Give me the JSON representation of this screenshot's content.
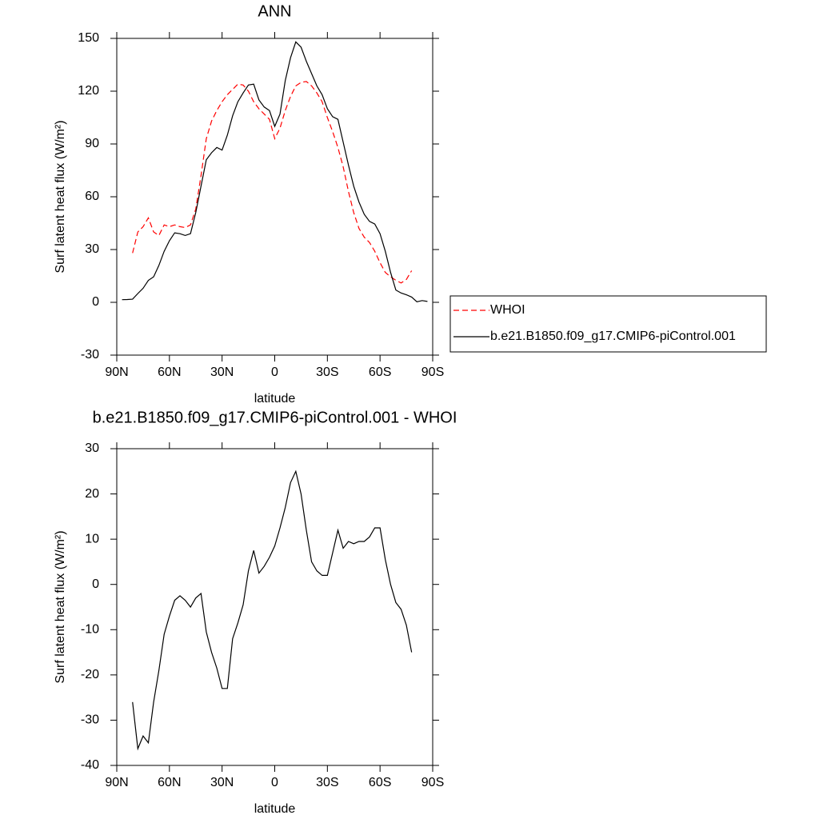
{
  "chart_data": [
    {
      "type": "line",
      "title": "ANN",
      "xlabel": "latitude",
      "ylabel": "Surf latent heat flux (W/m²)",
      "x": [
        87,
        84,
        81,
        78,
        75,
        72,
        69,
        66,
        63,
        60,
        57,
        54,
        51,
        48,
        45,
        42,
        39,
        36,
        33,
        30,
        27,
        24,
        21,
        18,
        15,
        12,
        9,
        6,
        3,
        0,
        -3,
        -6,
        -9,
        -12,
        -15,
        -18,
        -21,
        -24,
        -27,
        -30,
        -33,
        -36,
        -39,
        -42,
        -45,
        -48,
        -51,
        -54,
        -57,
        -60,
        -63,
        -66,
        -69,
        -72,
        -75,
        -78,
        -81,
        -84,
        -87
      ],
      "series": [
        {
          "name": "WHOI",
          "color": "#ff0000",
          "style": "dashed",
          "values": [
            null,
            null,
            28,
            40,
            43,
            48,
            40,
            38,
            44,
            43,
            44,
            43,
            42.5,
            44,
            53,
            72,
            93,
            103,
            109,
            114,
            118,
            121,
            124,
            123.5,
            120,
            114,
            110,
            107,
            104,
            93,
            99,
            109,
            117,
            123,
            125,
            125.5,
            123,
            119,
            114,
            105,
            97,
            88,
            77,
            63,
            51,
            42,
            37,
            34,
            29,
            22.5,
            17,
            14.5,
            12.5,
            11,
            13,
            18,
            null,
            null,
            null
          ]
        },
        {
          "name": "b.e21.B1850.f09_g17.CMIP6-piControl.001",
          "color": "#000000",
          "style": "solid",
          "values": [
            1.5,
            1.6,
            1.8,
            5,
            8,
            12.5,
            14.5,
            21,
            29,
            35,
            39.5,
            39,
            38,
            39,
            51,
            66,
            81,
            85,
            88,
            86.5,
            95,
            106,
            114,
            119,
            123.5,
            124,
            115,
            111,
            109,
            100,
            107,
            126,
            139,
            148,
            145,
            137,
            130,
            123,
            118,
            110,
            105.5,
            104,
            91,
            78,
            66,
            57,
            50,
            46,
            44.5,
            39,
            29,
            17,
            7,
            5.3,
            4.3,
            3,
            0.3,
            1,
            0.5
          ]
        }
      ],
      "xlim": [
        90,
        -90
      ],
      "xticks": [
        {
          "value": 90,
          "label": "90N"
        },
        {
          "value": 60,
          "label": "60N"
        },
        {
          "value": 30,
          "label": "30N"
        },
        0,
        {
          "value": -30,
          "label": "30S"
        },
        {
          "value": -60,
          "label": "60S"
        },
        {
          "value": -90,
          "label": "90S"
        }
      ],
      "ylim": [
        -30,
        150
      ],
      "yticks": [
        -30,
        0,
        30,
        60,
        90,
        120,
        150
      ],
      "legend": "right"
    },
    {
      "type": "line",
      "title": "b.e21.B1850.f09_g17.CMIP6-piControl.001 - WHOI",
      "xlabel": "latitude",
      "ylabel": "Surf latent heat flux (W/m²)",
      "x": [
        81,
        78,
        75,
        72,
        69,
        66,
        63,
        60,
        57,
        54,
        51,
        48,
        45,
        42,
        39,
        36,
        33,
        30,
        27,
        24,
        21,
        18,
        15,
        12,
        9,
        6,
        3,
        0,
        -3,
        -6,
        -9,
        -12,
        -15,
        -18,
        -21,
        -24,
        -27,
        -30,
        -33,
        -36,
        -39,
        -42,
        -45,
        -48,
        -51,
        -54,
        -57,
        -60,
        -63,
        -66,
        -69,
        -72,
        -75,
        -78
      ],
      "values": [
        -26,
        -36.3,
        -33.5,
        -35,
        -26,
        -19,
        -11,
        -7,
        -3.5,
        -2.5,
        -3.5,
        -5,
        -3,
        -2,
        -10.5,
        -15,
        -18.5,
        -23,
        -23,
        -12,
        -8.5,
        -4.5,
        3,
        7.5,
        2.5,
        4,
        6,
        8.5,
        12.5,
        17,
        22.5,
        25,
        20,
        12,
        5,
        3,
        2,
        2,
        7,
        12,
        8,
        9.5,
        9,
        9.5,
        9.5,
        10.5,
        12.5,
        12.5,
        5.5,
        0,
        -4,
        -5.5,
        -9,
        -15
      ],
      "color": "#000000",
      "xlim": [
        90,
        -90
      ],
      "xticks": [
        {
          "value": 90,
          "label": "90N"
        },
        {
          "value": 60,
          "label": "60N"
        },
        {
          "value": 30,
          "label": "30N"
        },
        0,
        {
          "value": -30,
          "label": "30S"
        },
        {
          "value": -60,
          "label": "60S"
        },
        {
          "value": -90,
          "label": "90S"
        }
      ],
      "ylim": [
        -40,
        30
      ],
      "yticks": [
        -40,
        -30,
        -20,
        -10,
        0,
        10,
        20,
        30
      ]
    }
  ]
}
